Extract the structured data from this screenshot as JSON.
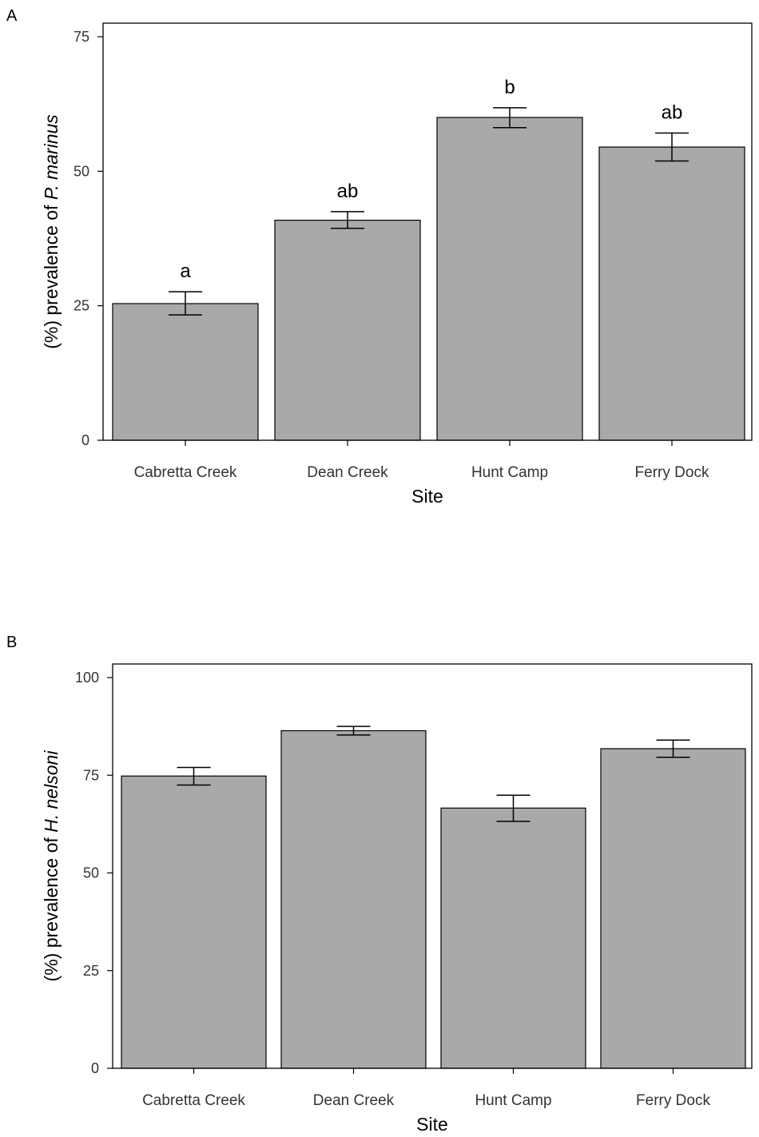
{
  "chart_data": [
    {
      "type": "bar",
      "panel_label": "A",
      "categories": [
        "Cabretta Creek",
        "Dean Creek",
        "Hunt Camp",
        "Ferry Dock"
      ],
      "values": [
        25.4,
        40.9,
        60.0,
        54.5
      ],
      "error_low": [
        23.3,
        39.4,
        58.1,
        51.9
      ],
      "error_high": [
        27.6,
        42.5,
        61.8,
        57.1
      ],
      "significance_labels": [
        "a",
        "ab",
        "b",
        "ab"
      ],
      "xlabel": "Site",
      "ylabel_prefix": "(%) prevalence of ",
      "ylabel_species": "P. marinus",
      "ylim": [
        0,
        75
      ],
      "yticks": [
        0,
        25,
        50,
        75
      ],
      "bar_color": "#a9a9a9",
      "grid": false
    },
    {
      "type": "bar",
      "panel_label": "B",
      "categories": [
        "Cabretta Creek",
        "Dean Creek",
        "Hunt Camp",
        "Ferry Dock"
      ],
      "values": [
        74.8,
        86.4,
        66.6,
        81.8
      ],
      "error_low": [
        72.5,
        85.3,
        63.2,
        79.6
      ],
      "error_high": [
        77.0,
        87.5,
        69.9,
        84.0
      ],
      "significance_labels": [],
      "xlabel": "Site",
      "ylabel_prefix": "(%) prevalence of ",
      "ylabel_species": "H. nelsoni",
      "ylim": [
        0,
        100
      ],
      "yticks": [
        0,
        25,
        50,
        75,
        100
      ],
      "bar_color": "#a9a9a9",
      "grid": false
    }
  ]
}
